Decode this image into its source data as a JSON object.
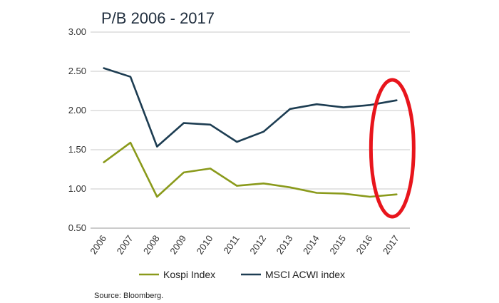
{
  "chart_data": {
    "type": "line",
    "title": "P/B 2006 - 2017",
    "categories": [
      "2006",
      "2007",
      "2008",
      "2009",
      "2010",
      "2011",
      "2012",
      "2013",
      "2014",
      "2015",
      "2016",
      "2017"
    ],
    "ylim": [
      0.5,
      3.0
    ],
    "yticks": [
      "3.00",
      "2.50",
      "2.00",
      "1.50",
      "1.00",
      "0.50"
    ],
    "ytick_values": [
      3.0,
      2.5,
      2.0,
      1.5,
      1.0,
      0.5
    ],
    "grid": true,
    "legend_position": "bottom",
    "series": [
      {
        "name": "Kospi Index",
        "color": "#8a9a1b",
        "values": [
          1.34,
          1.59,
          0.9,
          1.21,
          1.26,
          1.04,
          1.07,
          1.02,
          0.95,
          0.94,
          0.9,
          0.93
        ]
      },
      {
        "name": "MSCI ACWI index",
        "color": "#1d3d52",
        "values": [
          2.54,
          2.43,
          1.54,
          1.84,
          1.82,
          1.6,
          1.73,
          2.02,
          2.08,
          2.04,
          2.07,
          2.13
        ]
      }
    ],
    "annotation": {
      "type": "ellipse",
      "color": "#e8151c",
      "target_category": "2017"
    },
    "source": "Source: Bloomberg."
  }
}
